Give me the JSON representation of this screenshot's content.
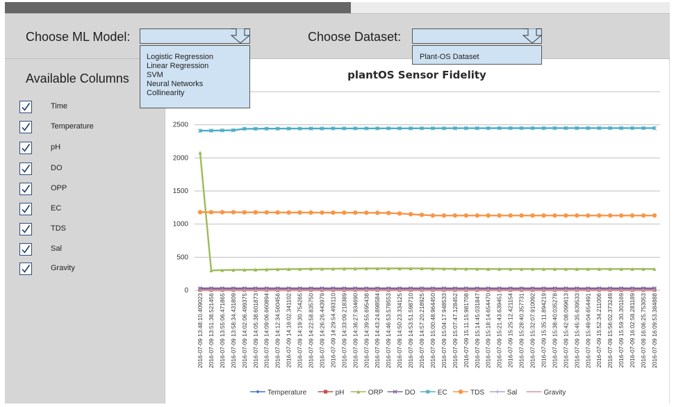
{
  "progress": {
    "fraction": 0.52
  },
  "toolbar": {
    "model_label": "Choose ML Model:",
    "dataset_label": "Choose Dataset:"
  },
  "model_dropdown": {
    "options": [
      "Logistic Regression",
      "Linear Regression",
      "SVM",
      "Neural Networks",
      "Collinearity"
    ]
  },
  "dataset_dropdown": {
    "options": [
      "Plant-OS Dataset"
    ]
  },
  "columns": {
    "heading": "Available Columns",
    "items": [
      {
        "label": "Time",
        "checked": true
      },
      {
        "label": "Temperature",
        "checked": true
      },
      {
        "label": "pH",
        "checked": true
      },
      {
        "label": "DO",
        "checked": true
      },
      {
        "label": "OPP",
        "checked": true
      },
      {
        "label": "EC",
        "checked": true
      },
      {
        "label": "TDS",
        "checked": true
      },
      {
        "label": "Sal",
        "checked": true
      },
      {
        "label": "Gravity",
        "checked": true
      }
    ]
  },
  "colors": {
    "panel": "#d6d6d6",
    "dropdown": "#cfe2f3",
    "checkbox_border": "#2c4a7a"
  },
  "chart_data": {
    "type": "line",
    "title": "plantOS Sensor Fidelity",
    "xlabel": "",
    "ylabel": "",
    "ylim": [
      0,
      3000
    ],
    "yticks": [
      0,
      500,
      1000,
      1500,
      2000,
      2500
    ],
    "grid": true,
    "legend_position": "bottom",
    "categories": [
      "2016-07-09 13:48:10.409023",
      "2016-07-09 13:51:38.521456",
      "2016-07-09 13:55:06.471865",
      "2016-07-09 13:58:34.431809",
      "2016-07-09 14:02:06.499375",
      "2016-07-09 14:05:38.601873",
      "2016-07-09 14:09:06.660894",
      "2016-07-09 14:12:34.560456",
      "2016-07-09 14:16:02.341102",
      "2016-07-09 14:19:30.754265",
      "2016-07-09 14:22:58.835750",
      "2016-07-09 14:26:26.443979",
      "2016-07-09 14:29:54.493110",
      "2016-07-09 14:33:09.218389",
      "2016-07-09 14:36:27.934690",
      "2016-07-09 14:39:55.695438",
      "2016-07-09 14:43:24.898584",
      "2016-07-09 14:46:53.578553",
      "2016-07-09 14:50:23.334125",
      "2016-07-09 14:53:51.598710",
      "2016-07-09 14:57:20.218925",
      "2016-07-09 15:00:48.964450",
      "2016-07-09 15:04:17.948533",
      "2016-07-09 15:07:47.128452",
      "2016-07-09 15:11:15.981708",
      "2016-07-09 15:14:45.031847",
      "2016-07-09 15:18:14.654470",
      "2016-07-09 15:21:43.639451",
      "2016-07-09 15:25:12.421154",
      "2016-07-09 15:28:40.357731",
      "2016-07-09 15:32:07.910092",
      "2016-07-09 15:35:11.894219",
      "2016-07-09 15:38:40.035278",
      "2016-07-09 15:42:08.099613",
      "2016-07-09 15:45:35.639533",
      "2016-07-09 15:49:04.654491",
      "2016-07-09 15:52:34.211006",
      "2016-07-09 15:56:02.373249",
      "2016-07-09 15:59:30.301169",
      "2016-07-09 16:02:58.281189",
      "2016-07-09 16:06:25.753053",
      "2016-07-09 16:09:53.384888"
    ],
    "series": [
      {
        "name": "Temperature",
        "color": "#4472c4",
        "marker": "diamond",
        "values": [
          24,
          24,
          24,
          24,
          24,
          24,
          24,
          24,
          24,
          24,
          24,
          24,
          24,
          24,
          24,
          24,
          24,
          24,
          24,
          24,
          24,
          24,
          24,
          24,
          24,
          24,
          24,
          24,
          24,
          24,
          24,
          24,
          24,
          24,
          24,
          24,
          24,
          24,
          24,
          24,
          24,
          24
        ]
      },
      {
        "name": "pH",
        "color": "#c0504d",
        "marker": "square",
        "values": [
          6,
          6,
          6,
          6,
          6,
          6,
          6,
          6,
          6,
          6,
          6,
          6,
          6,
          6,
          6,
          6,
          6,
          6,
          6,
          6,
          6,
          6,
          6,
          6,
          6,
          6,
          6,
          6,
          6,
          6,
          6,
          6,
          6,
          6,
          6,
          6,
          6,
          6,
          6,
          6,
          6,
          6
        ]
      },
      {
        "name": "ORP",
        "color": "#9bbb59",
        "marker": "triangle",
        "values": [
          2080,
          300,
          305,
          308,
          310,
          312,
          315,
          318,
          320,
          322,
          325,
          325,
          326,
          328,
          328,
          330,
          330,
          330,
          330,
          330,
          330,
          328,
          326,
          325,
          324,
          323,
          322,
          322,
          322,
          322,
          322,
          322,
          322,
          322,
          322,
          322,
          322,
          322,
          322,
          322,
          322,
          322
        ]
      },
      {
        "name": "DO",
        "color": "#8064a2",
        "marker": "x",
        "values": [
          30,
          30,
          30,
          30,
          30,
          30,
          30,
          30,
          30,
          30,
          30,
          30,
          30,
          30,
          30,
          30,
          30,
          30,
          30,
          30,
          30,
          30,
          30,
          30,
          30,
          30,
          30,
          30,
          30,
          30,
          30,
          30,
          30,
          30,
          30,
          30,
          30,
          30,
          30,
          30,
          30,
          30
        ]
      },
      {
        "name": "EC",
        "color": "#4bacc6",
        "marker": "star",
        "values": [
          2410,
          2412,
          2415,
          2418,
          2440,
          2440,
          2442,
          2442,
          2443,
          2443,
          2444,
          2444,
          2445,
          2445,
          2445,
          2445,
          2446,
          2446,
          2446,
          2446,
          2447,
          2447,
          2447,
          2448,
          2448,
          2448,
          2448,
          2449,
          2449,
          2449,
          2449,
          2449,
          2450,
          2450,
          2450,
          2450,
          2450,
          2450,
          2450,
          2450,
          2450,
          2450
        ]
      },
      {
        "name": "TDS",
        "color": "#f79646",
        "marker": "circle",
        "values": [
          1180,
          1180,
          1180,
          1180,
          1178,
          1178,
          1177,
          1176,
          1175,
          1175,
          1174,
          1174,
          1173,
          1173,
          1173,
          1172,
          1170,
          1168,
          1160,
          1150,
          1140,
          1130,
          1130,
          1130,
          1130,
          1130,
          1130,
          1130,
          1130,
          1130,
          1130,
          1130,
          1130,
          1130,
          1130,
          1130,
          1130,
          1130,
          1130,
          1130,
          1130,
          1130
        ]
      },
      {
        "name": "Sal",
        "color": "#a6a6d6",
        "marker": "plus",
        "values": [
          1,
          1,
          1,
          1,
          1,
          1,
          1,
          1,
          1,
          1,
          1,
          1,
          1,
          1,
          1,
          1,
          1,
          1,
          1,
          1,
          1,
          1,
          1,
          1,
          1,
          1,
          1,
          1,
          1,
          1,
          1,
          1,
          1,
          1,
          1,
          1,
          1,
          1,
          1,
          1,
          1,
          1
        ]
      },
      {
        "name": "Gravity",
        "color": "#d99694",
        "marker": "none",
        "values": [
          1,
          1,
          1,
          1,
          1,
          1,
          1,
          1,
          1,
          1,
          1,
          1,
          1,
          1,
          1,
          1,
          1,
          1,
          1,
          1,
          1,
          1,
          1,
          1,
          1,
          1,
          1,
          1,
          1,
          1,
          1,
          1,
          1,
          1,
          1,
          1,
          1,
          1,
          1,
          1,
          1,
          1
        ]
      }
    ]
  }
}
